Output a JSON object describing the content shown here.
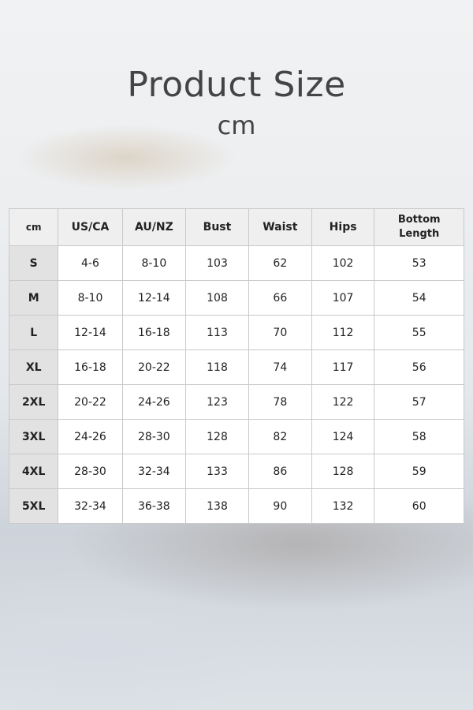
{
  "title": "Product Size",
  "subtitle": "cm",
  "table": {
    "headers": [
      "cm",
      "US/CA",
      "AU/NZ",
      "Bust",
      "Waist",
      "Hips",
      "Bottom Length"
    ],
    "rows": [
      [
        "S",
        "4-6",
        "8-10",
        "103",
        "62",
        "102",
        "53"
      ],
      [
        "M",
        "8-10",
        "12-14",
        "108",
        "66",
        "107",
        "54"
      ],
      [
        "L",
        "12-14",
        "16-18",
        "113",
        "70",
        "112",
        "55"
      ],
      [
        "XL",
        "16-18",
        "20-22",
        "118",
        "74",
        "117",
        "56"
      ],
      [
        "2XL",
        "20-22",
        "24-26",
        "123",
        "78",
        "122",
        "57"
      ],
      [
        "3XL",
        "24-26",
        "28-30",
        "128",
        "82",
        "124",
        "58"
      ],
      [
        "4XL",
        "28-30",
        "32-34",
        "133",
        "86",
        "128",
        "59"
      ],
      [
        "5XL",
        "32-34",
        "36-38",
        "138",
        "90",
        "132",
        "60"
      ]
    ]
  }
}
